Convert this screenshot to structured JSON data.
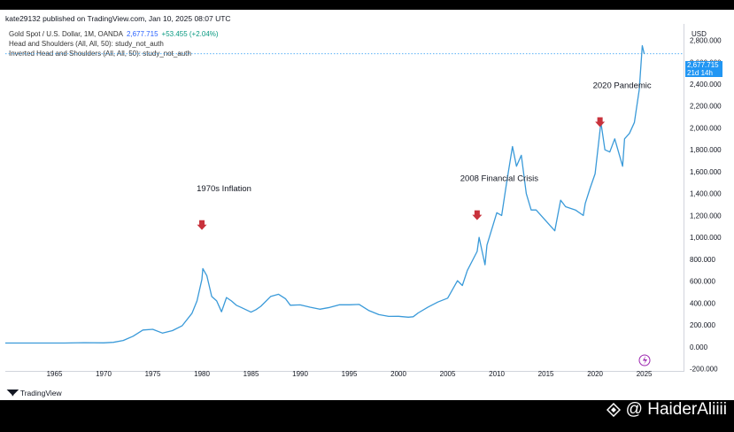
{
  "header": {
    "published": "kate29132 published on TradingView.com, Jan 10, 2025 08:07 UTC"
  },
  "legend": {
    "symbol": "Gold Spot / U.S. Dollar, 1M, OANDA",
    "price": "2,677.715",
    "change": "+53.455 (+2.04%)",
    "study1": "Head and Shoulders (All, All, 50): study_not_auth",
    "study2": "Inverted Head and Shoulders (All, All, 50): study_not_auth"
  },
  "price_axis": {
    "currency": "USD",
    "last_price": "2,677.715",
    "countdown": "21d 14h"
  },
  "branding": {
    "tradingview": "TradingView",
    "watermark": "@ HaiderAliiii"
  },
  "colors": {
    "line": "#3a9ad9",
    "arrow": "#c8323c",
    "accent": "#2196f3"
  },
  "chart_data": {
    "type": "line",
    "series": [
      {
        "x": [
          1960,
          1966,
          1968,
          1970,
          1971,
          1972,
          1973,
          1974,
          1975,
          1976,
          1977,
          1978,
          1979,
          1979.5,
          1980,
          1980.1,
          1980.5,
          1981,
          1981.5,
          1982,
          1982.5,
          1983,
          1983.5,
          1984,
          1985,
          1985.5,
          1986,
          1987,
          1987.8,
          1988.5,
          1989,
          1990,
          1991,
          1992,
          1993,
          1994,
          1995,
          1996,
          1997,
          1998,
          1999,
          2000,
          2001,
          2001.5,
          2002,
          2003,
          2004,
          2005,
          2006,
          2006.5,
          2007,
          2008,
          2008.2,
          2008.8,
          2009,
          2010,
          2010.5,
          2011,
          2011.6,
          2012,
          2012.5,
          2013,
          2013.5,
          2014,
          2015,
          2015.9,
          2016.5,
          2017,
          2018,
          2018.8,
          2019,
          2019.5,
          2020,
          2020.6,
          2021,
          2021.5,
          2022,
          2022.8,
          2023,
          2023.5,
          2024,
          2024.5,
          2024.8,
          2025.0
        ],
        "y": [
          35,
          35,
          38,
          36,
          41,
          58,
          97,
          154,
          160,
          125,
          148,
          193,
          307,
          420,
          615,
          715,
          650,
          460,
          420,
          320,
          450,
          420,
          380,
          360,
          317,
          340,
          370,
          460,
          480,
          440,
          380,
          383,
          362,
          344,
          360,
          384,
          384,
          387,
          331,
          294,
          278,
          279,
          271,
          275,
          310,
          363,
          409,
          445,
          604,
          560,
          697,
          872,
          1000,
          750,
          930,
          1225,
          1200,
          1500,
          1830,
          1650,
          1750,
          1400,
          1250,
          1250,
          1150,
          1060,
          1340,
          1280,
          1250,
          1200,
          1310,
          1450,
          1580,
          2050,
          1800,
          1780,
          1900,
          1650,
          1900,
          1950,
          2050,
          2350,
          2750,
          2677
        ]
      }
    ],
    "xlim": [
      1960,
      2029
    ],
    "ylim": [
      -220,
      2950
    ],
    "xticks": [
      "1965",
      "1970",
      "1975",
      "1980",
      "1985",
      "1990",
      "1995",
      "2000",
      "2005",
      "2010",
      "2015",
      "2020",
      "2025"
    ],
    "yticks": [
      "2,800.000",
      "2,600.000",
      "2,400.000",
      "2,200.000",
      "2,000.000",
      "1,800.000",
      "1,600.000",
      "1,400.000",
      "1,200.000",
      "1,000.000",
      "800.000",
      "600.000",
      "400.000",
      "200.000",
      "0.000",
      "-200.000"
    ],
    "annotations": [
      {
        "text": "1970s Inflation",
        "x": 1980,
        "arrow_y": 1100
      },
      {
        "text": "2008 Financial Crisis",
        "x": 2008,
        "arrow_y": 1190
      },
      {
        "text": "2020 Pandemic",
        "x": 2020.5,
        "arrow_y": 2040
      }
    ],
    "grid": false
  }
}
